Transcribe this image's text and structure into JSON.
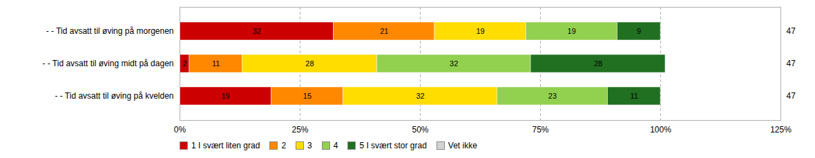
{
  "chart_data": {
    "type": "bar",
    "orientation": "horizontal",
    "stacked": true,
    "data_labels": true,
    "grid": true,
    "legend": "bottom",
    "categories": [
      "- - Tid avsatt til øving på morgenen",
      "- - Tid avsatt til øving midt på dagen",
      "- - Tid avsatt til øving på kvelden"
    ],
    "series": [
      {
        "name": "1 I svært liten grad",
        "color": "#cc0000",
        "values": [
          32,
          2,
          19
        ]
      },
      {
        "name": "2",
        "color": "#ff8800",
        "values": [
          21,
          11,
          15
        ]
      },
      {
        "name": "3",
        "color": "#ffdd00",
        "values": [
          19,
          28,
          32
        ]
      },
      {
        "name": "4",
        "color": "#92d050",
        "values": [
          19,
          32,
          23
        ]
      },
      {
        "name": "5 I svært stor grad",
        "color": "#217021",
        "values": [
          9,
          28,
          11
        ]
      },
      {
        "name": "Vet ikke",
        "color": "#d3d3d3",
        "values": [
          0,
          0,
          0
        ]
      }
    ],
    "totals": [
      47,
      47,
      47
    ],
    "xlim": [
      0,
      125
    ],
    "xticks": [
      {
        "value": 0,
        "label": "0%"
      },
      {
        "value": 25,
        "label": "25%"
      },
      {
        "value": 50,
        "label": "50%"
      },
      {
        "value": 75,
        "label": "75%"
      },
      {
        "value": 100,
        "label": "100%"
      },
      {
        "value": 125,
        "label": "125%"
      }
    ]
  }
}
